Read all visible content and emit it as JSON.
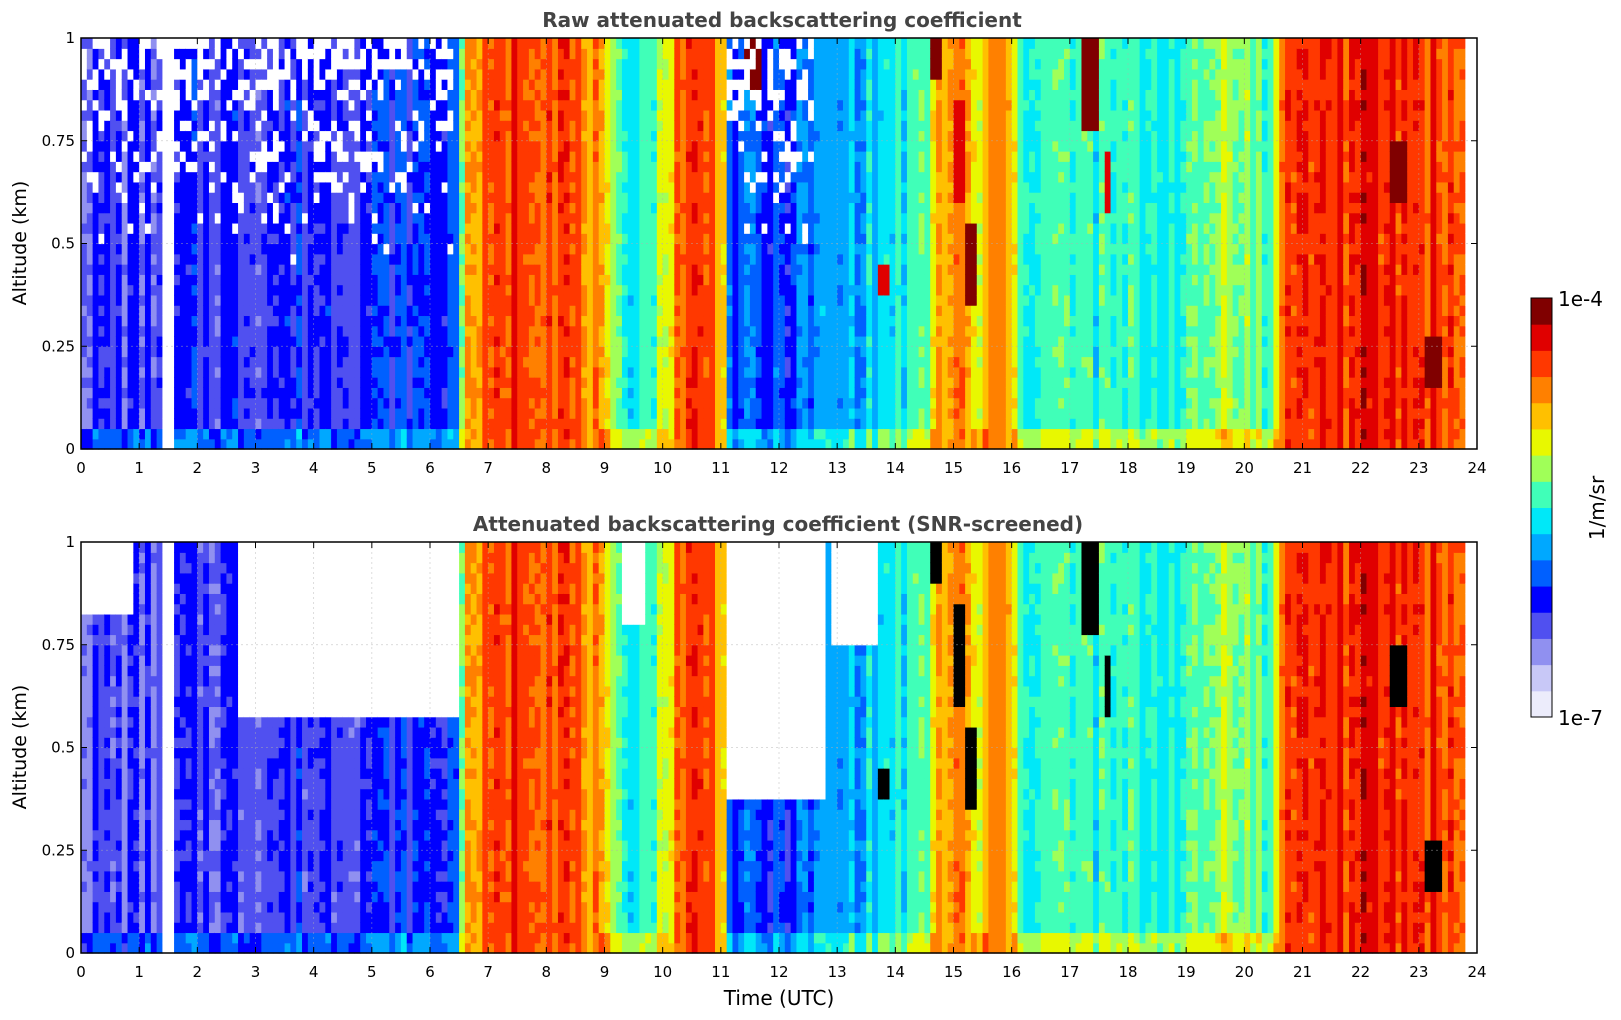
{
  "figure": {
    "colorbar": {
      "label": "1/m/sr",
      "max_label": "1e-4",
      "min_label": "1e-7",
      "scale": "log",
      "range": [
        1e-07,
        0.0001
      ],
      "colormap": "jet",
      "colors": [
        "#ececfb",
        "#c8c8f7",
        "#9090f0",
        "#5050f0",
        "#0000ff",
        "#0060ff",
        "#00a8ff",
        "#00e8f8",
        "#40ffb8",
        "#a0ff58",
        "#e8f800",
        "#ffc000",
        "#ff8000",
        "#ff3800",
        "#e00000",
        "#800000"
      ]
    }
  },
  "chart_data": [
    {
      "type": "heatmap",
      "title": "Raw attenuated backscattering coefficient",
      "xlabel": "",
      "ylabel": "Altitude (km)",
      "xlim": [
        0,
        24
      ],
      "ylim": [
        0,
        1
      ],
      "xticks": [
        "0",
        "1",
        "2",
        "3",
        "4",
        "5",
        "6",
        "7",
        "8",
        "9",
        "10",
        "11",
        "12",
        "13",
        "14",
        "15",
        "16",
        "17",
        "18",
        "19",
        "20",
        "21",
        "22",
        "23",
        "24"
      ],
      "yticks": [
        "0",
        "0.25",
        "0.5",
        "0.75",
        "1"
      ],
      "grid": true,
      "background_log10_by_time": [
        [
          0,
          -6.3
        ],
        [
          1.4,
          -6.3
        ],
        [
          2.0,
          -6.25
        ],
        [
          4.0,
          -6.2
        ],
        [
          6.4,
          -6.1
        ],
        [
          6.55,
          -5.2
        ],
        [
          6.7,
          -4.75
        ],
        [
          7.5,
          -4.4
        ],
        [
          8.3,
          -4.45
        ],
        [
          8.9,
          -4.8
        ],
        [
          9.2,
          -5.5
        ],
        [
          9.7,
          -5.45
        ],
        [
          10.1,
          -5.1
        ],
        [
          10.2,
          -4.55
        ],
        [
          10.7,
          -4.45
        ],
        [
          11.05,
          -4.75
        ],
        [
          11.15,
          -6.0
        ],
        [
          12.0,
          -6.1
        ],
        [
          12.8,
          -5.85
        ],
        [
          13.5,
          -5.7
        ],
        [
          14.5,
          -5.45
        ],
        [
          14.75,
          -4.8
        ],
        [
          15.1,
          -4.65
        ],
        [
          15.45,
          -5.1
        ],
        [
          15.65,
          -4.75
        ],
        [
          15.95,
          -4.7
        ],
        [
          16.1,
          -5.4
        ],
        [
          18.0,
          -5.5
        ],
        [
          19.2,
          -5.45
        ],
        [
          19.7,
          -5.1
        ],
        [
          20.5,
          -5.5
        ],
        [
          20.6,
          -4.5
        ],
        [
          21.4,
          -4.4
        ],
        [
          22.4,
          -4.4
        ],
        [
          23.4,
          -4.45
        ],
        [
          23.8,
          -4.6
        ],
        [
          24,
          -4.6
        ]
      ],
      "gaps_h": [
        [
          1.44,
          1.56
        ],
        [
          23.78,
          24.0
        ]
      ],
      "clouds": [
        {
          "t": [
            11.45,
            11.65
          ],
          "alt": [
            0.88,
            1.0
          ],
          "log10": -4.05
        },
        {
          "t": [
            14.65,
            14.8
          ],
          "alt": [
            0.9,
            1.0
          ],
          "log10": -4.1
        },
        {
          "t": [
            15.05,
            15.2
          ],
          "alt": [
            0.6,
            0.85
          ],
          "log10": -4.2
        },
        {
          "t": [
            15.25,
            15.45
          ],
          "alt": [
            0.35,
            0.55
          ],
          "log10": -4.1
        },
        {
          "t": [
            17.2,
            17.45
          ],
          "alt": [
            0.78,
            1.0
          ],
          "log10": -4.1
        },
        {
          "t": [
            17.55,
            17.7
          ],
          "alt": [
            0.58,
            0.72
          ],
          "log10": -4.25
        },
        {
          "t": [
            13.75,
            13.95
          ],
          "alt": [
            0.38,
            0.45
          ],
          "log10": -4.3
        },
        {
          "t": [
            22.55,
            22.75
          ],
          "alt": [
            0.6,
            0.75
          ],
          "log10": -4.15
        },
        {
          "t": [
            23.1,
            23.4
          ],
          "alt": [
            0.15,
            0.28
          ],
          "log10": -4.15
        }
      ]
    },
    {
      "type": "heatmap",
      "title": "Attenuated backscattering coefficient (SNR-screened)",
      "xlabel": "Time (UTC)",
      "ylabel": "Altitude (km)",
      "xlim": [
        0,
        24
      ],
      "ylim": [
        0,
        1
      ],
      "xticks": [
        "0",
        "1",
        "2",
        "3",
        "4",
        "5",
        "6",
        "7",
        "8",
        "9",
        "10",
        "11",
        "12",
        "13",
        "14",
        "15",
        "16",
        "17",
        "18",
        "19",
        "20",
        "21",
        "22",
        "23",
        "24"
      ],
      "yticks": [
        "0",
        "0.25",
        "0.5",
        "0.75",
        "1"
      ],
      "grid": true,
      "background_log10_by_time": [
        [
          0,
          -6.35
        ],
        [
          1.4,
          -6.35
        ],
        [
          2.0,
          -6.3
        ],
        [
          4.0,
          -6.25
        ],
        [
          6.4,
          -6.15
        ],
        [
          6.55,
          -5.2
        ],
        [
          6.7,
          -4.75
        ],
        [
          7.5,
          -4.4
        ],
        [
          8.3,
          -4.45
        ],
        [
          8.9,
          -4.8
        ],
        [
          9.2,
          -5.5
        ],
        [
          9.7,
          -5.45
        ],
        [
          10.1,
          -5.1
        ],
        [
          10.2,
          -4.55
        ],
        [
          10.7,
          -4.45
        ],
        [
          11.05,
          -4.75
        ],
        [
          11.15,
          -6.05
        ],
        [
          12.0,
          -6.15
        ],
        [
          12.8,
          -5.85
        ],
        [
          13.5,
          -5.7
        ],
        [
          14.5,
          -5.45
        ],
        [
          14.75,
          -4.8
        ],
        [
          15.1,
          -4.65
        ],
        [
          15.45,
          -5.1
        ],
        [
          15.65,
          -4.75
        ],
        [
          15.95,
          -4.7
        ],
        [
          16.1,
          -5.4
        ],
        [
          18.0,
          -5.5
        ],
        [
          19.2,
          -5.45
        ],
        [
          19.7,
          -5.1
        ],
        [
          20.5,
          -5.5
        ],
        [
          20.6,
          -4.5
        ],
        [
          21.4,
          -4.4
        ],
        [
          22.4,
          -4.4
        ],
        [
          23.4,
          -4.45
        ],
        [
          23.8,
          -4.6
        ],
        [
          24,
          -4.6
        ]
      ],
      "gaps_h": [
        [
          1.44,
          1.56
        ],
        [
          23.78,
          24.0
        ]
      ],
      "screened_regions": [
        {
          "t": [
            0.0,
            0.9
          ],
          "alt": [
            0.82,
            1.0
          ]
        },
        {
          "t": [
            2.7,
            6.5
          ],
          "alt": [
            0.58,
            1.0
          ]
        },
        {
          "t": [
            9.35,
            9.65
          ],
          "alt": [
            0.8,
            1.0
          ]
        },
        {
          "t": [
            11.15,
            12.8
          ],
          "alt": [
            0.38,
            1.0
          ]
        },
        {
          "t": [
            12.9,
            13.7
          ],
          "alt": [
            0.75,
            1.0
          ]
        }
      ],
      "clouds": [
        {
          "t": [
            11.45,
            11.65
          ],
          "alt": [
            0.88,
            1.0
          ],
          "log10": -3.8
        },
        {
          "t": [
            14.65,
            14.8
          ],
          "alt": [
            0.9,
            1.0
          ],
          "log10": -3.8
        },
        {
          "t": [
            15.05,
            15.2
          ],
          "alt": [
            0.6,
            0.85
          ],
          "log10": -3.8
        },
        {
          "t": [
            15.25,
            15.45
          ],
          "alt": [
            0.35,
            0.55
          ],
          "log10": -3.8
        },
        {
          "t": [
            17.2,
            17.45
          ],
          "alt": [
            0.78,
            1.0
          ],
          "log10": -3.8
        },
        {
          "t": [
            17.55,
            17.7
          ],
          "alt": [
            0.58,
            0.72
          ],
          "log10": -3.8
        },
        {
          "t": [
            13.75,
            13.95
          ],
          "alt": [
            0.38,
            0.45
          ],
          "log10": -3.8
        },
        {
          "t": [
            22.55,
            22.75
          ],
          "alt": [
            0.6,
            0.75
          ],
          "log10": -3.8
        },
        {
          "t": [
            23.1,
            23.4
          ],
          "alt": [
            0.15,
            0.28
          ],
          "log10": -3.8
        }
      ]
    }
  ]
}
